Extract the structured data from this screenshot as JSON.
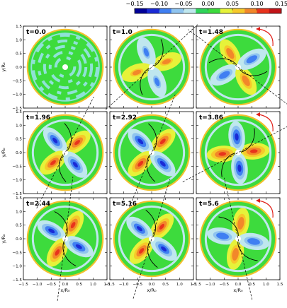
{
  "chart_data": {
    "type": "heatmap",
    "colorbar": {
      "ticks": [
        "−0.15",
        "−0.10",
        "−0.05",
        "0.00",
        "0.05",
        "0.10",
        "0.15"
      ],
      "range": [
        -0.15,
        0.15
      ],
      "colors": [
        "#000099",
        "#1a2bd6",
        "#3f7ff2",
        "#8fc4ef",
        "#bfe7ee",
        "#2fd35a",
        "#3ddb3d",
        "#e6f23a",
        "#f6c92a",
        "#f2872a",
        "#e8331c",
        "#c21418"
      ]
    },
    "axes": {
      "xlabel": "x/R₀",
      "ylabel": "y/R₀",
      "xlim": [
        -1.5,
        1.5
      ],
      "ylim": [
        -1.5,
        1.5
      ],
      "x_ticks": [
        "−1.5",
        "−1.0",
        "−0.5",
        "0.0",
        "0.5",
        "1.0",
        "1.5"
      ],
      "y_ticks": [
        "−1.5",
        "−1.0",
        "−0.5",
        "0.0",
        "0.5",
        "1.0",
        "1.5"
      ]
    },
    "panels": [
      {
        "label": "t=0.0",
        "lobes": 0.2,
        "pattern": "noise",
        "angle_deg": 0,
        "rotation_arrow": false,
        "dashed_line": false
      },
      {
        "label": "t=1.0",
        "lobes": 0.6,
        "pattern": "spiral",
        "angle_deg": 20,
        "rotation_arrow": false,
        "dashed_line": true
      },
      {
        "label": "t=1.48",
        "lobes": 0.8,
        "pattern": "spiral",
        "angle_deg": 120,
        "rotation_arrow": true,
        "dashed_line": true
      },
      {
        "label": "t=1.96",
        "lobes": 0.9,
        "pattern": "spiral",
        "angle_deg": 40,
        "rotation_arrow": false,
        "dashed_line": true
      },
      {
        "label": "t=2.92",
        "lobes": 0.95,
        "pattern": "spiral",
        "angle_deg": 45,
        "rotation_arrow": false,
        "dashed_line": true
      },
      {
        "label": "t=3.86",
        "lobes": 1.0,
        "pattern": "spiral",
        "angle_deg": 5,
        "rotation_arrow": true,
        "dashed_line": true
      },
      {
        "label": "t=2.44",
        "lobes": 0.95,
        "pattern": "spiral",
        "angle_deg": 60,
        "rotation_arrow": false,
        "dashed_line": true
      },
      {
        "label": "t=5.16",
        "lobes": 0.9,
        "pattern": "spiral",
        "angle_deg": 50,
        "rotation_arrow": false,
        "dashed_line": true
      },
      {
        "label": "t=5.6",
        "lobes": 0.85,
        "pattern": "spiral",
        "angle_deg": 80,
        "rotation_arrow": true,
        "dashed_line": true
      }
    ]
  }
}
